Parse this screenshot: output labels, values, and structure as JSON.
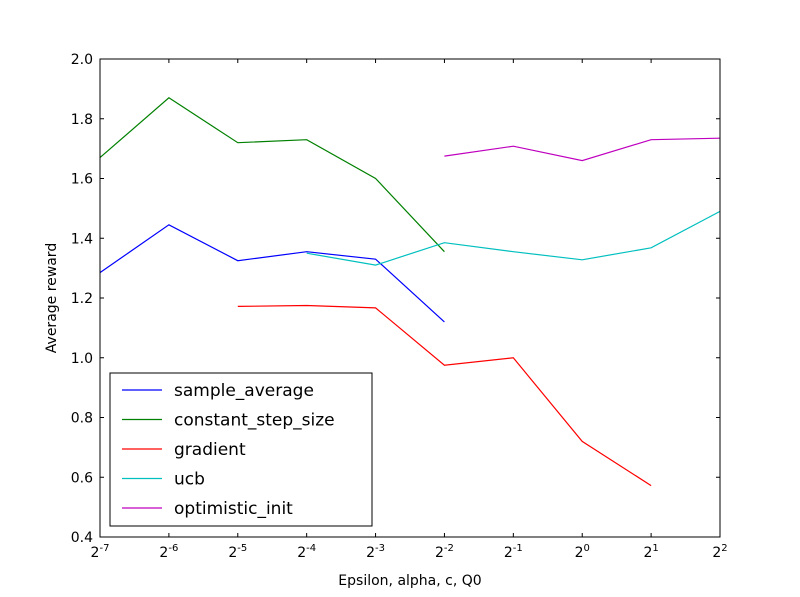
{
  "chart_data": {
    "type": "line",
    "title": "",
    "xlabel": "Epsilon, alpha, c, Q0",
    "ylabel": "Average reward",
    "x_scale": "log2",
    "x_exponents": [
      -7,
      -6,
      -5,
      -4,
      -3,
      -2,
      -1,
      0,
      1,
      2
    ],
    "x_tick_base": "2",
    "x_tick_exponent_labels": [
      "-7",
      "-6",
      "-5",
      "-4",
      "-3",
      "-2",
      "-1",
      "0",
      "1",
      "2"
    ],
    "xlim_exponent": [
      -7,
      2
    ],
    "ylim": [
      0.4,
      2.0
    ],
    "y_ticks": [
      0.4,
      0.6,
      0.8,
      1.0,
      1.2,
      1.4,
      1.6,
      1.8,
      2.0
    ],
    "y_tick_labels": [
      "0.4",
      "0.6",
      "0.8",
      "1.0",
      "1.2",
      "1.4",
      "1.6",
      "1.8",
      "2.0"
    ],
    "grid": false,
    "legend_position": "lower-left",
    "series": [
      {
        "name": "sample_average",
        "color": "#0000ff",
        "x_exponents": [
          -7,
          -6,
          -5,
          -4,
          -3,
          -2
        ],
        "values": [
          1.285,
          1.445,
          1.325,
          1.355,
          1.33,
          1.12
        ]
      },
      {
        "name": "constant_step_size",
        "color": "#008000",
        "x_exponents": [
          -7,
          -6,
          -5,
          -4,
          -3,
          -2
        ],
        "values": [
          1.67,
          1.87,
          1.72,
          1.73,
          1.6,
          1.355
        ]
      },
      {
        "name": "gradient",
        "color": "#ff0000",
        "x_exponents": [
          -5,
          -4,
          -3,
          -2,
          -1,
          0,
          1
        ],
        "values": [
          1.172,
          1.175,
          1.167,
          0.975,
          1.0,
          0.72,
          0.572
        ]
      },
      {
        "name": "ucb",
        "color": "#00bfbf",
        "x_exponents": [
          -4,
          -3,
          -2,
          -1,
          0,
          1,
          2
        ],
        "values": [
          1.35,
          1.31,
          1.385,
          1.355,
          1.328,
          1.368,
          1.49
        ]
      },
      {
        "name": "optimistic_init",
        "color": "#bf00bf",
        "x_exponents": [
          -2,
          -1,
          0,
          1,
          2
        ],
        "values": [
          1.675,
          1.708,
          1.66,
          1.73,
          1.735
        ]
      }
    ]
  }
}
